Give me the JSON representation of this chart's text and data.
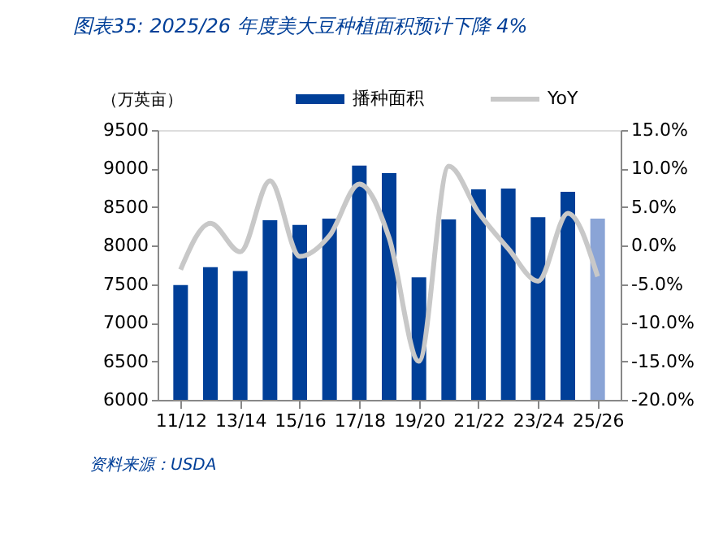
{
  "chart_data": {
    "type": "bar",
    "title": "图表35:  2025/26 年度美大豆种植面积预计下降 4%",
    "ylabel": "（万英亩）",
    "categories": [
      "11/12",
      null,
      "13/14",
      null,
      "15/16",
      null,
      "17/18",
      null,
      "19/20",
      null,
      "21/22",
      null,
      "23/24",
      null,
      "25/26"
    ],
    "series": [
      {
        "name": "播种面积",
        "color": "#003f98",
        "colors": [
          "#003f98",
          "#003f98",
          "#003f98",
          "#003f98",
          "#003f98",
          "#003f98",
          "#003f98",
          "#003f98",
          "#003f98",
          "#003f98",
          "#003f98",
          "#003f98",
          "#003f98",
          "#003f98",
          "#8aa4d6"
        ],
        "values": [
          7490,
          7720,
          7670,
          8330,
          8270,
          8350,
          9040,
          8940,
          7590,
          8340,
          8730,
          8740,
          8370,
          8700,
          8350
        ]
      },
      {
        "name": "YoY",
        "type": "line",
        "axis": "y2",
        "color": "#c8c8c8",
        "values": [
          -3.1,
          2.9,
          -0.8,
          8.4,
          -1.4,
          1.3,
          8.0,
          1.0,
          -15.0,
          10.3,
          4.3,
          -0.4,
          -4.6,
          4.2,
          -4.0
        ]
      }
    ],
    "ylim": [
      6000,
      9500
    ],
    "yticks": [
      6000,
      6500,
      7000,
      7500,
      8000,
      8500,
      9000,
      9500
    ],
    "y2lim": [
      -20,
      15
    ],
    "y2ticks": [
      {
        "value": -20,
        "label": "-20.0%"
      },
      {
        "value": -15,
        "label": "-15.0%"
      },
      {
        "value": -10,
        "label": "-10.0%"
      },
      {
        "value": -5,
        "label": "-5.0%"
      },
      {
        "value": 0,
        "label": "0.0%"
      },
      {
        "value": 5,
        "label": "5.0%"
      },
      {
        "value": 10,
        "label": "10.0%"
      },
      {
        "value": 15,
        "label": "15.0%"
      }
    ],
    "grid": false,
    "legend": "top",
    "marker": "none",
    "line_style": "solid",
    "annotations": [
      "资料来源：USDA"
    ]
  }
}
